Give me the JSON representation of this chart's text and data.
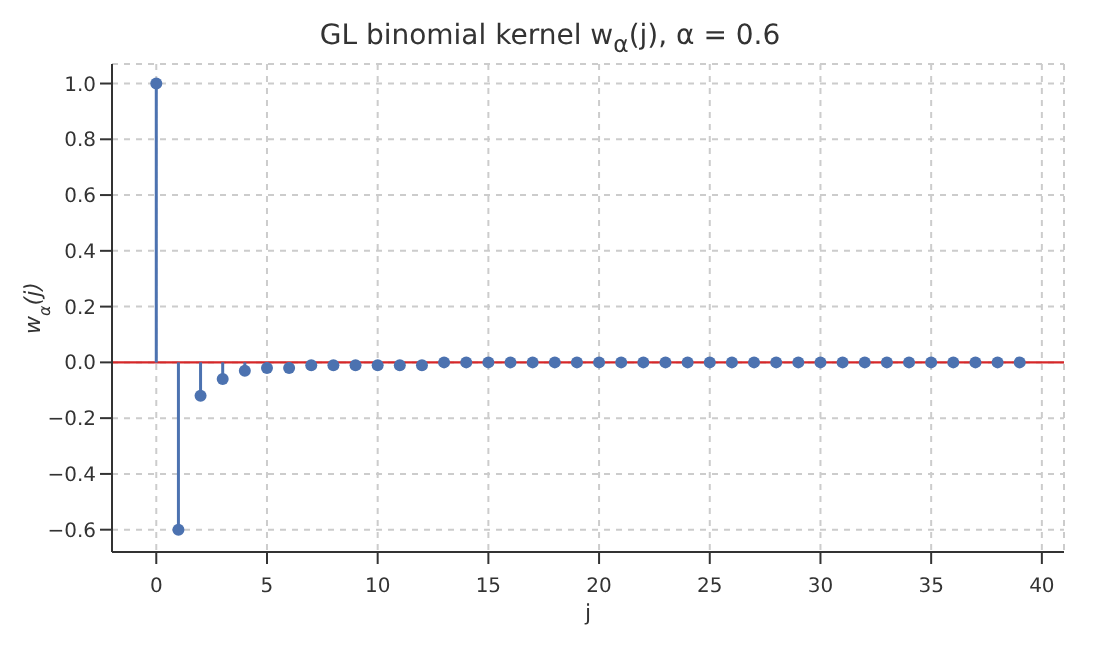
{
  "chart_data": {
    "type": "lollipop",
    "title": "GL binomial kernel w$_{α}$(j), α = 0.6",
    "xlabel": "j",
    "ylabel": "w$_{α}$(j)",
    "x": [
      0,
      1,
      2,
      3,
      4,
      5,
      6,
      7,
      8,
      9,
      10,
      11,
      12,
      13,
      14,
      15,
      16,
      17,
      18,
      19,
      20,
      21,
      22,
      23,
      24,
      25,
      26,
      27,
      28,
      29,
      30,
      31,
      32,
      33,
      34,
      35,
      36,
      37,
      38,
      39
    ],
    "values": [
      1,
      -0.6,
      -0.12,
      -0.06,
      -0.03,
      -0.02,
      -0.02,
      -0.01,
      -0.01,
      -0.01,
      -0.01,
      -0.01,
      -0.01,
      0,
      0,
      0,
      0,
      0,
      0,
      0,
      0,
      0,
      0,
      0,
      0,
      0,
      0,
      0,
      0,
      0,
      0,
      0,
      0,
      0,
      0,
      0,
      0,
      0,
      0,
      0
    ],
    "color": "#4c72b0",
    "marker": "circle",
    "xlim": [
      -2,
      41
    ],
    "xticks": [
      0,
      5,
      10,
      15,
      20,
      25,
      30,
      35,
      40
    ],
    "ylim": [
      -0.68,
      1.07
    ],
    "yticks": [
      {
        "value": -0.6,
        "label": "−0.6"
      },
      {
        "value": -0.4,
        "label": "−0.4"
      },
      {
        "value": -0.2,
        "label": "−0.2"
      },
      {
        "value": 0,
        "label": "0.0"
      },
      {
        "value": 0.2,
        "label": "0.2"
      },
      {
        "value": 0.4,
        "label": "0.4"
      },
      {
        "value": 0.6,
        "label": "0.6"
      },
      {
        "value": 0.8,
        "label": "0.8"
      },
      {
        "value": 1,
        "label": "1.0"
      }
    ],
    "ref_lines": [
      {
        "axis": "y",
        "value": 0,
        "label": null,
        "color": "#d62728"
      }
    ],
    "grid": true
  }
}
